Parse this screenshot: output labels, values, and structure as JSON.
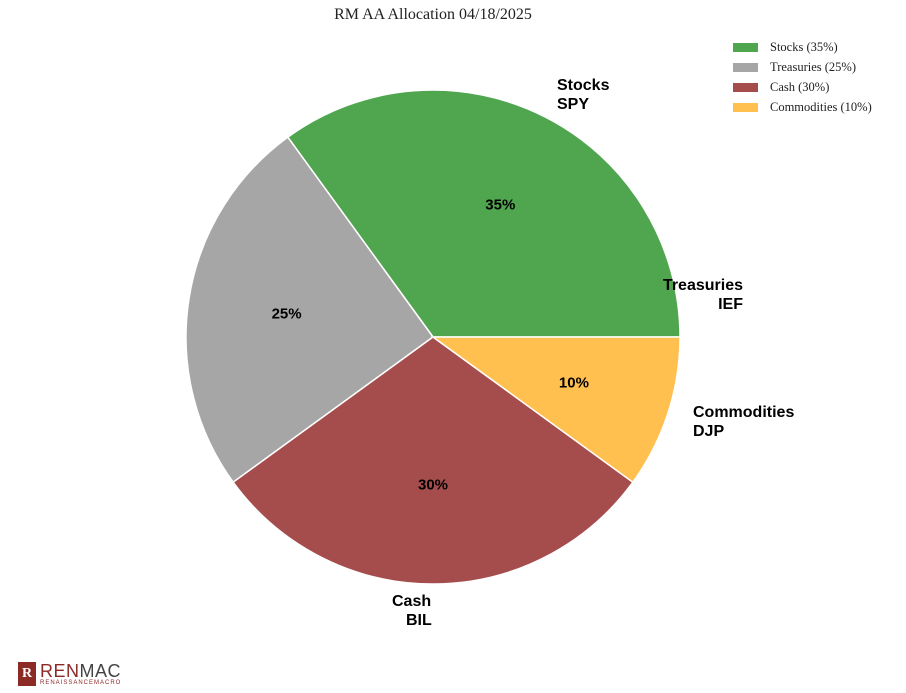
{
  "chart_data": {
    "type": "pie",
    "title": "RM AA Allocation 04/18/2025",
    "slices": [
      {
        "name": "Stocks",
        "ticker": "SPY",
        "value": 35,
        "pct_label": "35%",
        "legend": "Stocks (35%)",
        "color": "#50a54f"
      },
      {
        "name": "Treasuries",
        "ticker": "IEF",
        "value": 25,
        "pct_label": "25%",
        "legend": "Treasuries (25%)",
        "color": "#a6a6a6"
      },
      {
        "name": "Cash",
        "ticker": "BIL",
        "value": 30,
        "pct_label": "30%",
        "legend": "Cash (30%)",
        "color": "#a54d4d"
      },
      {
        "name": "Commodities",
        "ticker": "DJP",
        "value": 10,
        "pct_label": "10%",
        "legend": "Commodities (10%)",
        "color": "#ffc04f"
      }
    ],
    "legend_position": "top-right",
    "start_angle_deg": 0,
    "direction": "counterclockwise"
  },
  "logo": {
    "brand_a": "REN",
    "brand_b": "MAC",
    "tagline": "RENAISSANCEMACRO",
    "mark": "R"
  }
}
